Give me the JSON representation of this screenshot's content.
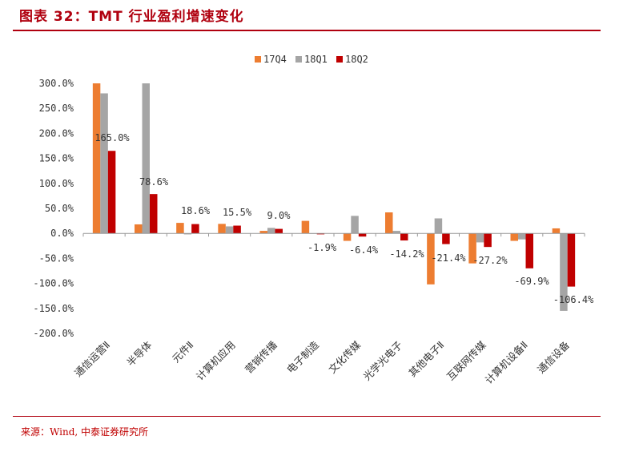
{
  "header": {
    "title": "图表 32：TMT 行业盈利增速变化",
    "source": "来源：Wind, 中泰证券研究所"
  },
  "colors": {
    "accent": "#b0000f",
    "series": [
      "#ed7d31",
      "#a5a5a5",
      "#c00000"
    ]
  },
  "chart_data": {
    "type": "bar",
    "title": "",
    "xlabel": "",
    "ylabel": "",
    "ylim": [
      -200,
      300
    ],
    "yticks": [
      300,
      250,
      200,
      150,
      100,
      50,
      0,
      -50,
      -100,
      -150,
      -200
    ],
    "ytick_labels": [
      "300.0%",
      "250.0%",
      "200.0%",
      "150.0%",
      "100.0%",
      "50.0%",
      "0.0%",
      "-50.0%",
      "-100.0%",
      "-150.0%",
      "-200.0%"
    ],
    "legend_position": "top-center",
    "categories": [
      "通信运营Ⅱ",
      "半导体",
      "元件Ⅱ",
      "计算机应用",
      "营销传播",
      "电子制造",
      "文化传媒",
      "光学光电子",
      "其他电子Ⅱ",
      "互联网传媒",
      "计算机设备Ⅱ",
      "通信设备"
    ],
    "series": [
      {
        "name": "17Q4",
        "values": [
          300,
          18,
          21,
          19,
          5,
          25,
          -15,
          42,
          -102,
          -60,
          -15,
          10
        ]
      },
      {
        "name": "18Q1",
        "values": [
          280,
          300,
          -2,
          14,
          11,
          0,
          35,
          5,
          30,
          -18,
          -12,
          -155
        ]
      },
      {
        "name": "18Q2",
        "values": [
          165.0,
          78.6,
          18.6,
          15.5,
          9.0,
          -1.9,
          -6.4,
          -14.2,
          -21.4,
          -27.2,
          -69.9,
          -106.4
        ]
      }
    ],
    "data_labels": [
      "165.0%",
      "78.6%",
      "18.6%",
      "15.5%",
      "9.0%",
      "-1.9%",
      "-6.4%",
      "-14.2%",
      "-21.4%",
      "-27.2%",
      "-69.9%",
      "-106.4%"
    ]
  }
}
